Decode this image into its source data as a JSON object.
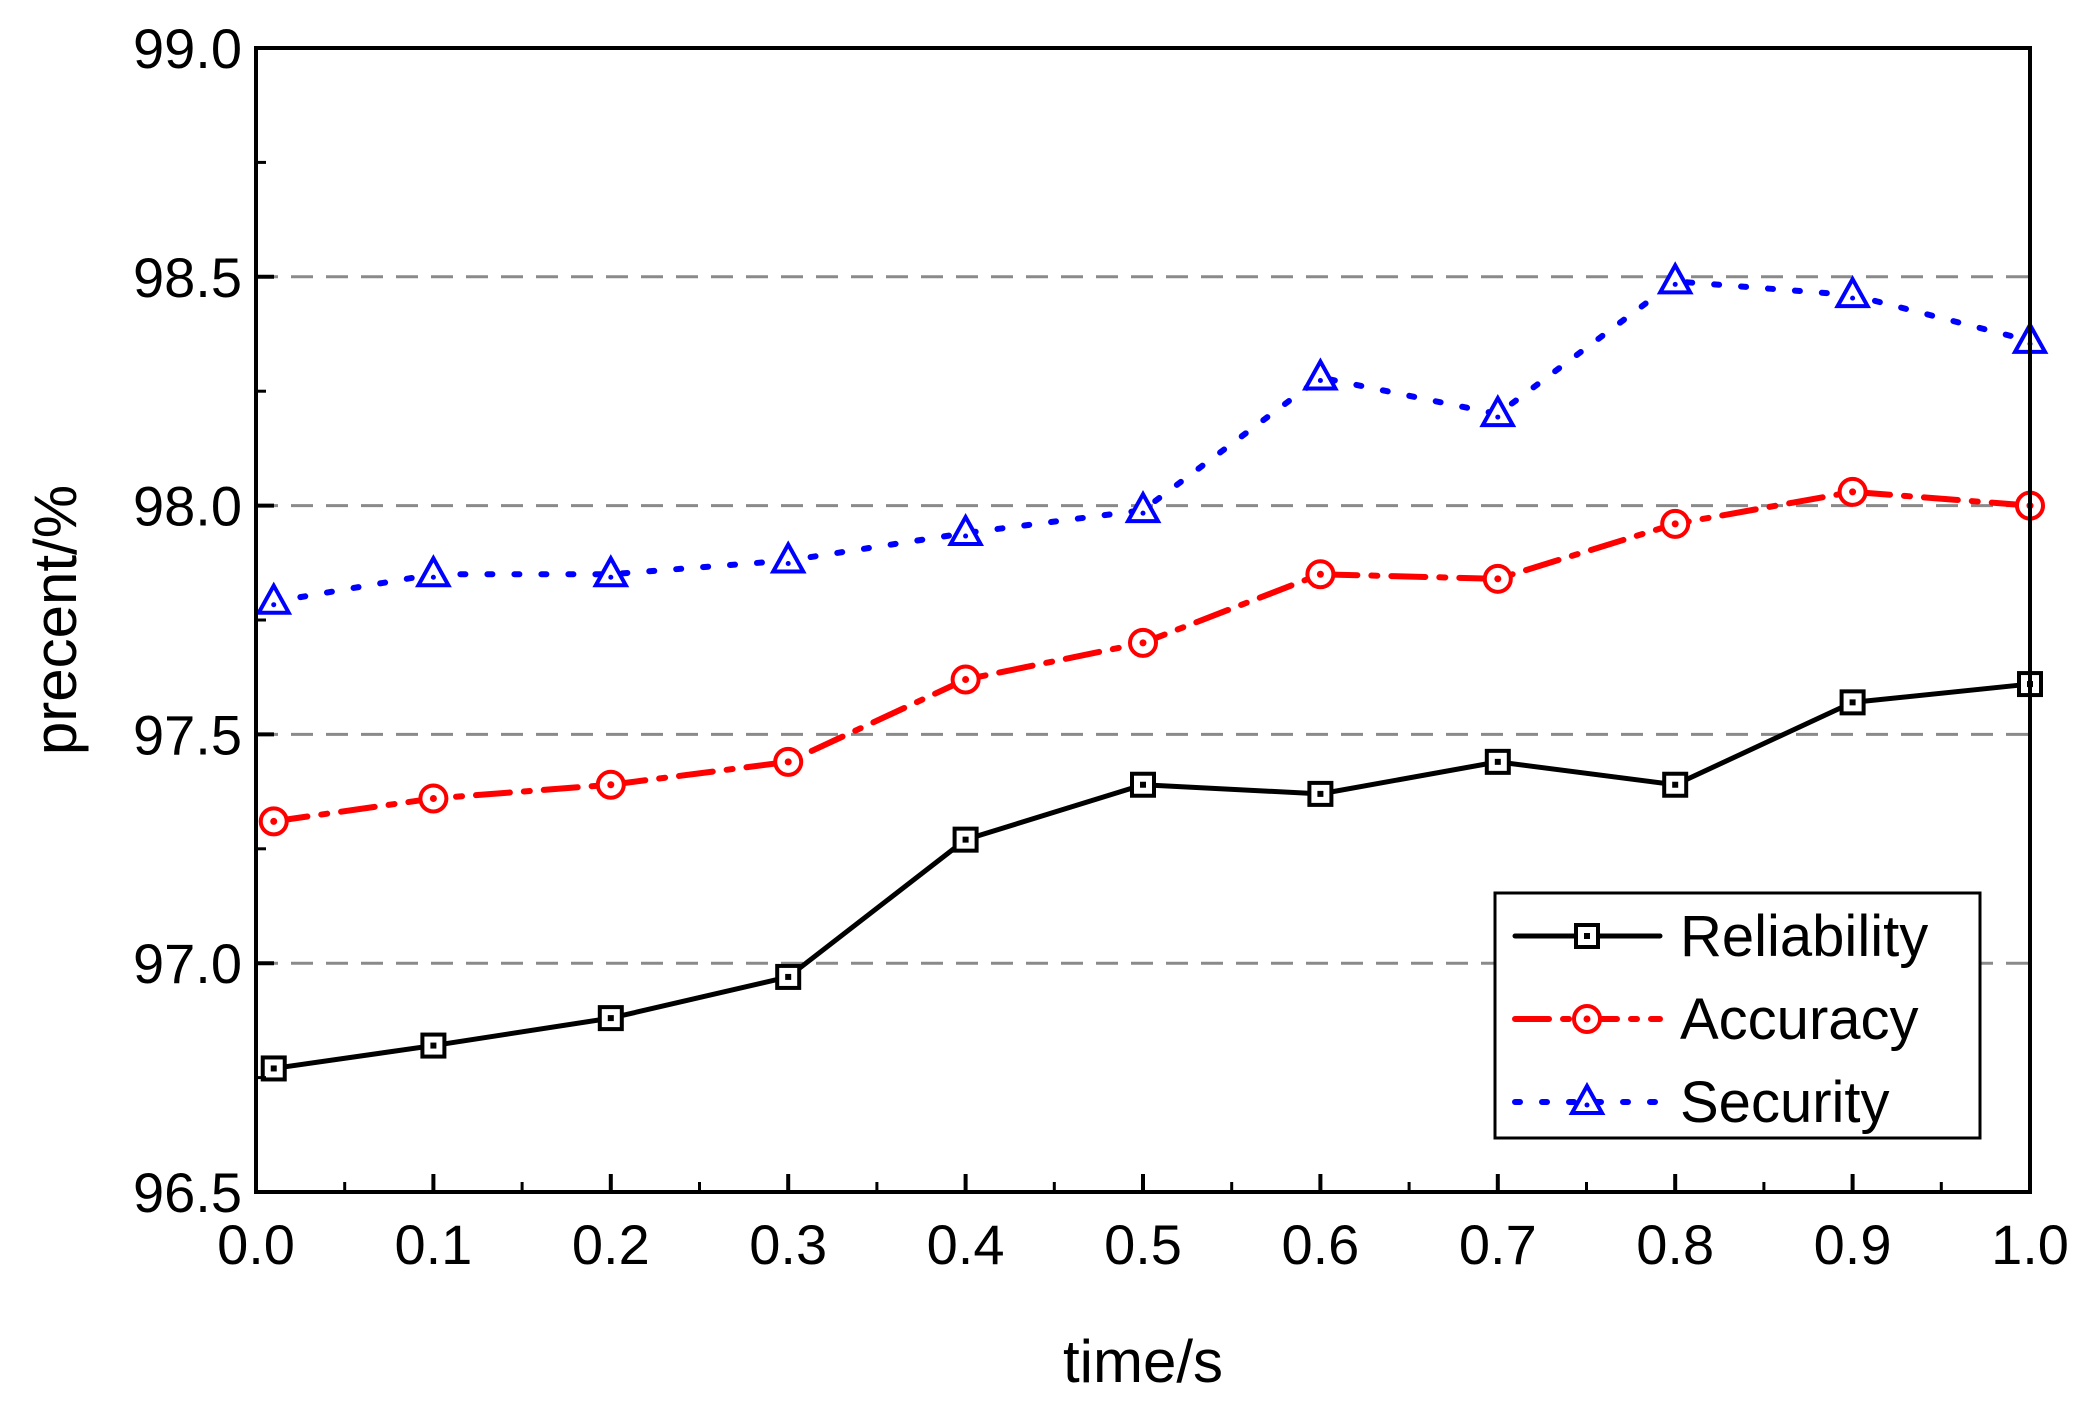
{
  "chart_data": {
    "type": "line",
    "title": "",
    "xlabel": "time/s",
    "ylabel": "precent/%",
    "xlim": [
      0.0,
      1.0
    ],
    "ylim": [
      96.5,
      99.0
    ],
    "xticks": [
      "0.0",
      "0.1",
      "0.2",
      "0.3",
      "0.4",
      "0.5",
      "0.6",
      "0.7",
      "0.8",
      "0.9",
      "1.0"
    ],
    "yticks": [
      "96.5",
      "97.0",
      "97.5",
      "98.0",
      "98.5",
      "99.0"
    ],
    "gridlines_y": [
      97.0,
      97.5,
      98.0,
      98.5
    ],
    "legend_position": "bottom-right",
    "x": [
      0.01,
      0.1,
      0.2,
      0.3,
      0.4,
      0.5,
      0.6,
      0.7,
      0.8,
      0.9,
      1.0
    ],
    "series": [
      {
        "name": "Reliability",
        "color": "#000000",
        "line_style": "solid",
        "marker": "square",
        "values": [
          96.77,
          96.82,
          96.88,
          96.97,
          97.27,
          97.39,
          97.37,
          97.44,
          97.39,
          97.57,
          97.61
        ]
      },
      {
        "name": "Accuracy",
        "color": "#ff0000",
        "line_style": "dash-dot",
        "marker": "circle",
        "values": [
          97.31,
          97.36,
          97.39,
          97.44,
          97.62,
          97.7,
          97.85,
          97.84,
          97.96,
          98.03,
          98.0
        ]
      },
      {
        "name": "Security",
        "color": "#0000ff",
        "line_style": "dotted",
        "marker": "triangle",
        "values": [
          97.79,
          97.85,
          97.85,
          97.88,
          97.94,
          97.99,
          98.28,
          98.2,
          98.49,
          98.46,
          98.36
        ]
      }
    ]
  }
}
